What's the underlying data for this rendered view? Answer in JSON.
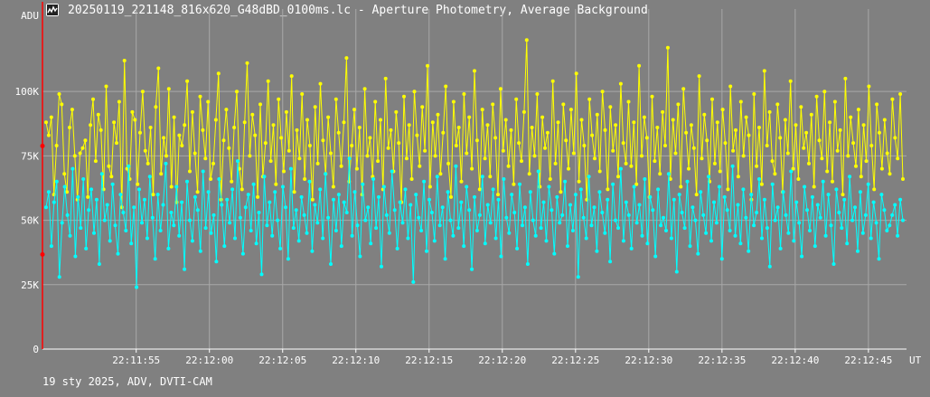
{
  "window": {
    "title": "20250119_221148_816x620_G48dBD_0100ms.lc - Aperture Photometry, Average Background",
    "icon": "lightcurve-app-icon"
  },
  "footer": {
    "info": "19 sty 2025, ADV, DVTI-CAM"
  },
  "colors": {
    "background": "#808080",
    "grid": "#a8a8a8",
    "axis": "#ffffff",
    "series_target": "#ffff00",
    "series_comparison": "#00ffff",
    "cursor": "#ff0000"
  },
  "chart_data": {
    "type": "line",
    "ylabel": "ADU",
    "xlabel": "UT",
    "yticks": [
      {
        "value": 0,
        "label": "0"
      },
      {
        "value": 25000,
        "label": "25K"
      },
      {
        "value": 50000,
        "label": "50K"
      },
      {
        "value": 75000,
        "label": "75K"
      },
      {
        "value": 100000,
        "label": "100K"
      }
    ],
    "ylim": [
      0,
      132000
    ],
    "xticks": [
      "22:11:55",
      "22:12:00",
      "22:12:05",
      "22:12:10",
      "22:12:15",
      "22:12:20",
      "22:12:25",
      "22:12:30",
      "22:12:35",
      "22:12:40",
      "22:12:45"
    ],
    "xlim": [
      "22:11:48.6",
      "22:12:47.6"
    ],
    "grid": true,
    "markers": true,
    "frame_interval_ms": 100,
    "series": [
      {
        "color": "#ffff00",
        "values": [
          88000,
          83000,
          90000,
          60000,
          79000,
          99000,
          95000,
          68000,
          61000,
          86000,
          93000,
          75000,
          58000,
          76000,
          78000,
          81000,
          59000,
          87000,
          97000,
          73000,
          91000,
          85000,
          62000,
          102000,
          71000,
          67000,
          88000,
          80000,
          96000,
          55000,
          112000,
          70000,
          66000,
          92000,
          89000,
          64000,
          84000,
          100000,
          77000,
          72000,
          86000,
          60000,
          94000,
          109000,
          68000,
          82000,
          75000,
          101000,
          63000,
          90000,
          57000,
          83000,
          79000,
          87000,
          104000,
          69000,
          92000,
          76000,
          61000,
          98000,
          85000,
          74000,
          96000,
          66000,
          72000,
          89000,
          107000,
          58000,
          81000,
          93000,
          78000,
          65000,
          86000,
          100000,
          70000,
          62000,
          88000,
          111000,
          75000,
          91000,
          83000,
          59000,
          95000,
          67000,
          80000,
          104000,
          73000,
          87000,
          64000,
          97000,
          82000,
          69000,
          92000,
          77000,
          106000,
          61000,
          85000,
          74000,
          99000,
          66000,
          89000,
          79000,
          58000,
          94000,
          72000,
          103000,
          81000,
          68000,
          90000,
          76000,
          63000,
          97000,
          84000,
          71000,
          88000,
          113000,
          65000,
          79000,
          93000,
          70000,
          86000,
          60000,
          101000,
          75000,
          82000,
          67000,
          96000,
          73000,
          89000,
          62000,
          105000,
          78000,
          85000,
          69000,
          92000,
          80000,
          57000,
          98000,
          74000,
          87000,
          66000,
          100000,
          83000,
          71000,
          94000,
          77000,
          110000,
          63000,
          88000,
          75000,
          91000,
          68000,
          84000,
          102000,
          72000,
          59000,
          96000,
          79000,
          86000,
          65000,
          99000,
          76000,
          90000,
          70000,
          108000,
          81000,
          62000,
          93000,
          74000,
          87000,
          67000,
          95000,
          82000,
          60000,
          101000,
          77000,
          89000,
          71000,
          85000,
          64000,
          97000,
          80000,
          73000,
          92000,
          120000,
          68000,
          86000,
          75000,
          99000,
          63000,
          90000,
          78000,
          84000,
          66000,
          104000,
          72000,
          88000,
          61000,
          95000,
          81000,
          70000,
          93000,
          76000,
          107000,
          65000,
          89000,
          79000,
          58000,
          97000,
          83000,
          74000,
          91000,
          69000,
          100000,
          85000,
          62000,
          94000,
          77000,
          87000,
          67000,
          103000,
          80000,
          72000,
          96000,
          71000,
          88000,
          64000,
          110000,
          75000,
          90000,
          82000,
          59000,
          98000,
          73000,
          86000,
          68000,
          92000,
          79000,
          117000,
          66000,
          89000,
          76000,
          95000,
          63000,
          101000,
          84000,
          70000,
          87000,
          78000,
          60000,
          106000,
          74000,
          91000,
          81000,
          65000,
          97000,
          72000,
          88000,
          69000,
          93000,
          80000,
          62000,
          102000,
          77000,
          85000,
          67000,
          96000,
          75000,
          90000,
          83000,
          58000,
          99000,
          71000,
          86000,
          64000,
          108000,
          79000,
          92000,
          73000,
          68000,
          95000,
          82000,
          61000,
          89000,
          76000,
          104000,
          70000,
          87000,
          66000,
          94000,
          78000,
          84000,
          72000,
          91000,
          63000,
          98000,
          81000,
          74000,
          100000,
          69000,
          88000,
          65000,
          96000,
          77000,
          85000,
          60000,
          105000,
          75000,
          90000,
          80000,
          71000,
          93000,
          67000,
          87000,
          73000,
          102000,
          79000,
          62000,
          95000,
          84000,
          70000,
          89000,
          76000,
          68000,
          97000,
          82000,
          74000,
          99000,
          66000
        ]
      },
      {
        "color": "#00ffff",
        "values": [
          55000,
          61000,
          40000,
          57000,
          65000,
          28000,
          49000,
          63000,
          52000,
          44000,
          70000,
          36000,
          59000,
          47000,
          66000,
          39000,
          54000,
          62000,
          45000,
          58000,
          33000,
          68000,
          50000,
          56000,
          42000,
          64000,
          48000,
          37000,
          60000,
          53000,
          46000,
          71000,
          41000,
          55000,
          24000,
          62000,
          49000,
          58000,
          43000,
          67000,
          51000,
          35000,
          60000,
          46000,
          56000,
          72000,
          39000,
          53000,
          48000,
          63000,
          44000,
          57000,
          31000,
          65000,
          50000,
          42000,
          59000,
          54000,
          38000,
          69000,
          47000,
          61000,
          45000,
          52000,
          34000,
          66000,
          56000,
          40000,
          58000,
          49000,
          62000,
          43000,
          73000,
          51000,
          37000,
          55000,
          60000,
          46000,
          64000,
          41000,
          53000,
          29000,
          67000,
          48000,
          57000,
          44000,
          61000,
          50000,
          39000,
          63000,
          55000,
          35000,
          70000,
          47000,
          54000,
          42000,
          59000,
          52000,
          45000,
          65000,
          38000,
          56000,
          49000,
          62000,
          43000,
          68000,
          51000,
          33000,
          58000,
          46000,
          60000,
          40000,
          57000,
          53000,
          74000,
          44000,
          61000,
          48000,
          36000,
          64000,
          50000,
          55000,
          41000,
          66000,
          47000,
          59000,
          32000,
          63000,
          52000,
          45000,
          69000,
          54000,
          39000,
          57000,
          49000,
          62000,
          43000,
          56000,
          26000,
          60000,
          51000,
          46000,
          65000,
          38000,
          58000,
          53000,
          42000,
          67000,
          48000,
          55000,
          35000,
          61000,
          50000,
          44000,
          71000,
          47000,
          57000,
          40000,
          63000,
          54000,
          31000,
          59000,
          46000,
          52000,
          67000,
          41000,
          56000,
          49000,
          62000,
          43000,
          58000,
          36000,
          66000,
          51000,
          45000,
          60000,
          53000,
          39000,
          64000,
          48000,
          55000,
          33000,
          61000,
          50000,
          44000,
          69000,
          47000,
          57000,
          42000,
          63000,
          54000,
          37000,
          59000,
          49000,
          52000,
          65000,
          40000,
          56000,
          46000,
          60000,
          28000,
          62000,
          51000,
          43000,
          67000,
          48000,
          55000,
          38000,
          61000,
          53000,
          45000,
          58000,
          34000,
          64000,
          50000,
          47000,
          70000,
          42000,
          57000,
          52000,
          39000,
          63000,
          49000,
          56000,
          44000,
          66000,
          41000,
          59000,
          54000,
          36000,
          62000,
          48000,
          51000,
          46000,
          68000,
          43000,
          58000,
          30000,
          60000,
          53000,
          47000,
          65000,
          40000,
          55000,
          50000,
          37000,
          61000,
          52000,
          45000,
          67000,
          42000,
          57000,
          49000,
          63000,
          35000,
          59000,
          54000,
          46000,
          71000,
          44000,
          56000,
          41000,
          62000,
          51000,
          38000,
          60000,
          48000,
          53000,
          66000,
          43000,
          58000,
          47000,
          32000,
          64000,
          50000,
          55000,
          39000,
          61000,
          52000,
          45000,
          69000,
          42000,
          57000,
          49000,
          36000,
          63000,
          54000,
          46000,
          59000,
          40000,
          56000,
          51000,
          65000,
          44000,
          60000,
          48000,
          33000,
          62000,
          53000,
          47000,
          58000,
          41000,
          67000,
          50000,
          55000,
          38000,
          61000,
          45000,
          52000,
          64000,
          43000,
          57000,
          49000,
          35000,
          60000,
          54000,
          46000,
          48000,
          52000,
          56000,
          44000,
          58000,
          50000
        ]
      }
    ]
  }
}
